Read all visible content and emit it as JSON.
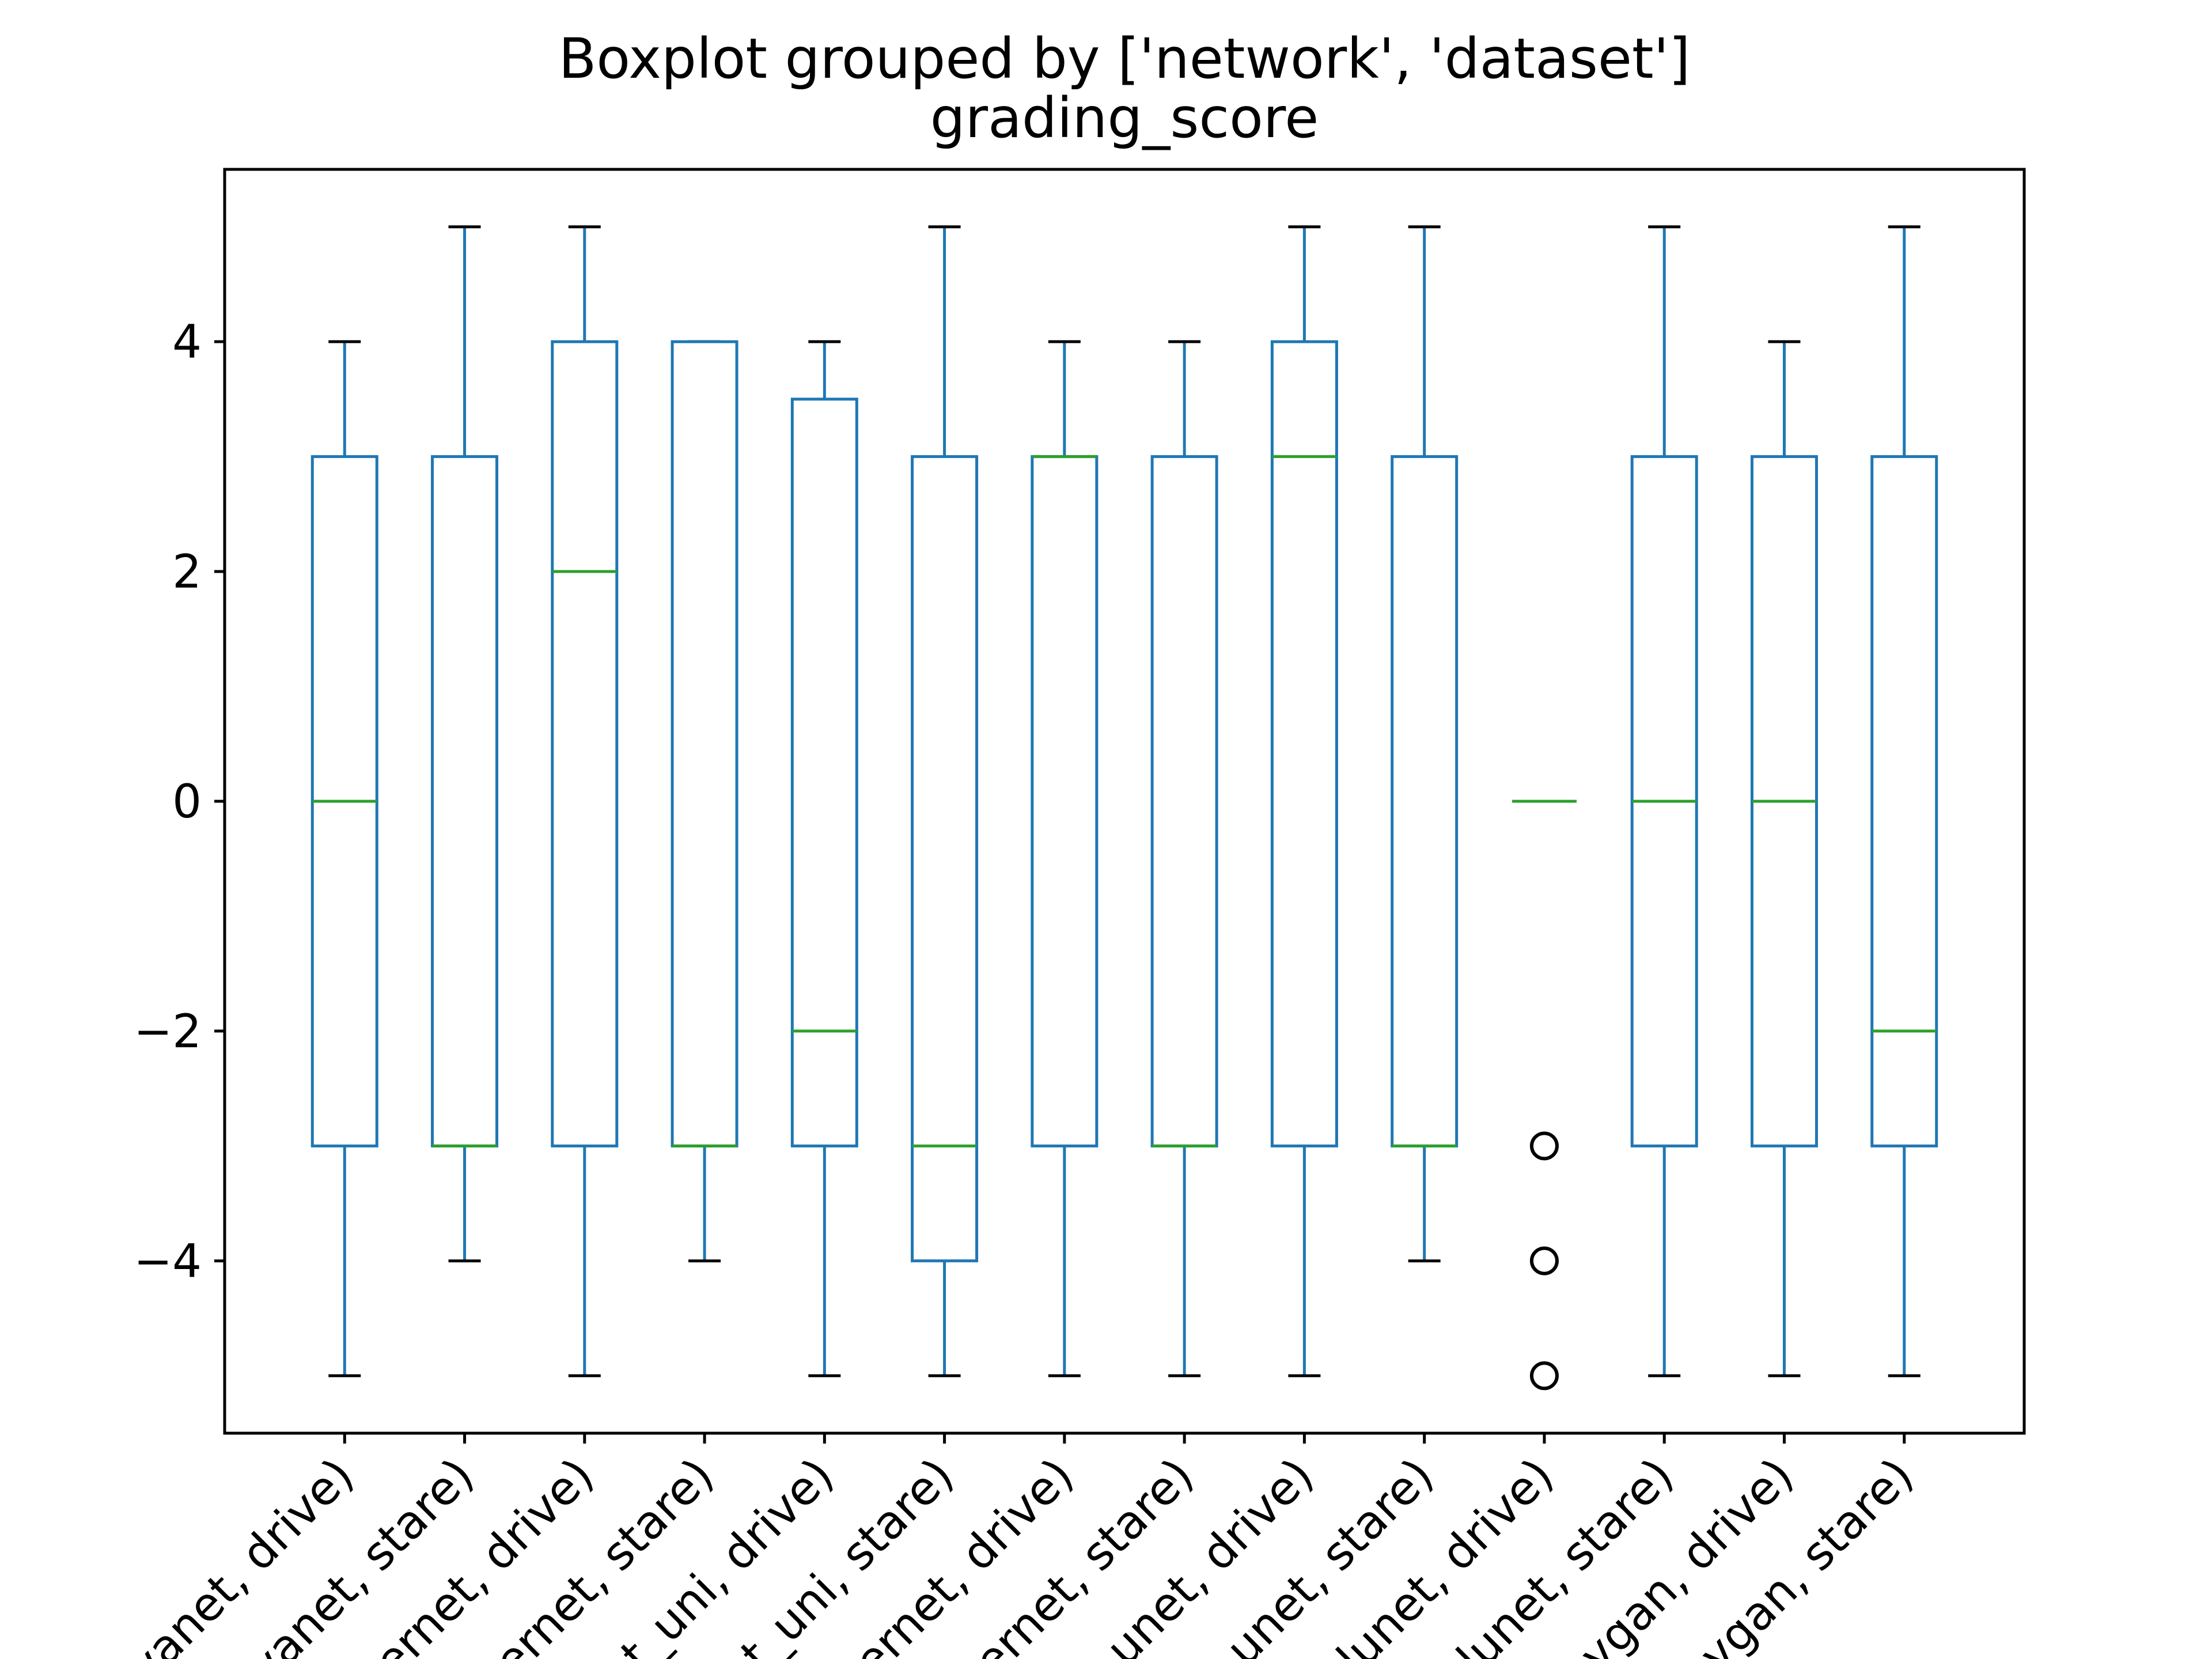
{
  "chart_data": {
    "type": "boxplot",
    "title": "Boxplot grouped by ['network', 'dataset']",
    "subtitle": "grading_score",
    "xlabel": "",
    "ylabel": "",
    "ylim": [
      -5.5,
      5.5
    ],
    "yticks": [
      -4,
      -2,
      0,
      2,
      4
    ],
    "ytick_labels": [
      "−4",
      "−2",
      "0",
      "2",
      "4"
    ],
    "grid": false,
    "colors": {
      "box": "#1f77b4",
      "median": "#2ca02c",
      "cap": "#000000",
      "flier": "#000000"
    },
    "categories": [
      "vanet, drive)",
      "vanet, stare)",
      "ernet, drive)",
      "ernet, stare)",
      "t_uni, drive)",
      "t_uni, stare)",
      "ernet, drive)",
      "ernet, stare)",
      "unet, drive)",
      "unet, stare)",
      "lunet, drive)",
      "lunet, stare)",
      "ygan, drive)",
      "ygan, stare)"
    ],
    "boxes": [
      {
        "whislo": -5,
        "q1": -3,
        "med": 0,
        "q3": 3,
        "whishi": 4,
        "fliers": []
      },
      {
        "whislo": -4,
        "q1": -3,
        "med": -3,
        "q3": 3,
        "whishi": 5,
        "fliers": []
      },
      {
        "whislo": -5,
        "q1": -3,
        "med": 2,
        "q3": 4,
        "whishi": 5,
        "fliers": []
      },
      {
        "whislo": -4,
        "q1": -3,
        "med": -3,
        "q3": 4,
        "whishi": 4,
        "fliers": []
      },
      {
        "whislo": -5,
        "q1": -3,
        "med": -2,
        "q3": 3.5,
        "whishi": 4,
        "fliers": []
      },
      {
        "whislo": -5,
        "q1": -4,
        "med": -3,
        "q3": 3,
        "whishi": 5,
        "fliers": []
      },
      {
        "whislo": -5,
        "q1": -3,
        "med": 3,
        "q3": 3,
        "whishi": 4,
        "fliers": []
      },
      {
        "whislo": -5,
        "q1": -3,
        "med": -3,
        "q3": 3,
        "whishi": 4,
        "fliers": []
      },
      {
        "whislo": -5,
        "q1": -3,
        "med": 3,
        "q3": 4,
        "whishi": 5,
        "fliers": []
      },
      {
        "whislo": -4,
        "q1": -3,
        "med": -3,
        "q3": 3,
        "whishi": 5,
        "fliers": []
      },
      {
        "whislo": 0,
        "q1": 0,
        "med": 0,
        "q3": 0,
        "whishi": 0,
        "fliers": [
          -3,
          -4,
          -5
        ]
      },
      {
        "whislo": -5,
        "q1": -3,
        "med": 0,
        "q3": 3,
        "whishi": 5,
        "fliers": []
      },
      {
        "whislo": -5,
        "q1": -3,
        "med": 0,
        "q3": 3,
        "whishi": 4,
        "fliers": []
      },
      {
        "whislo": -5,
        "q1": -3,
        "med": -2,
        "q3": 3,
        "whishi": 5,
        "fliers": []
      }
    ]
  }
}
